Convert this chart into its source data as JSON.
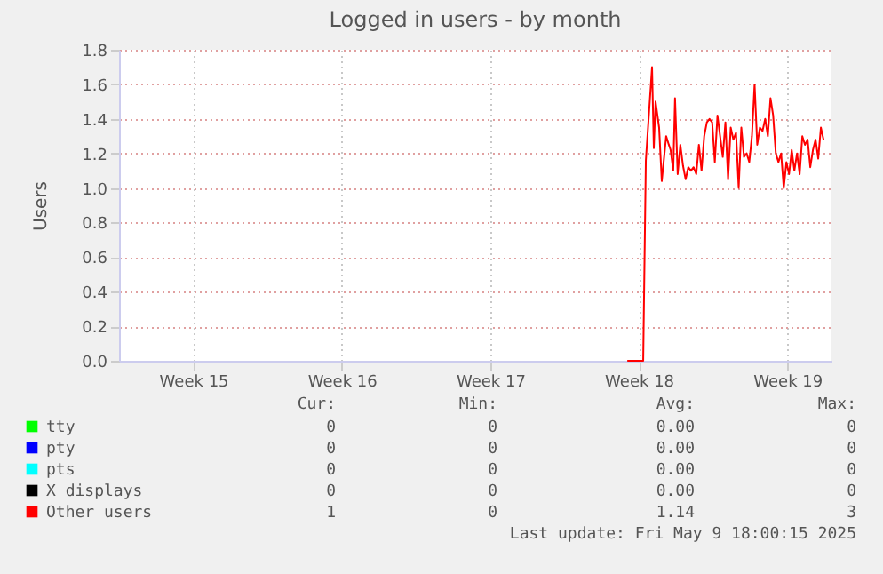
{
  "chart_data": {
    "type": "line",
    "title": "Logged in users - by month",
    "ylabel": "Users",
    "x": [
      "2025-04-30T11:00",
      "2025-05-01T05:00",
      "2025-05-01T08:00",
      "2025-05-01T15:00",
      "2025-05-01T17:00",
      "2025-05-01T19:00",
      "2025-05-01T23:00",
      "2025-05-02T02:00",
      "2025-05-02T07:00",
      "2025-05-02T10:00",
      "2025-05-02T12:00",
      "2025-05-02T15:00",
      "2025-05-02T17:00",
      "2025-05-02T20:00",
      "2025-05-02T23:00",
      "2025-05-03T02:00",
      "2025-05-03T05:00",
      "2025-05-03T08:00",
      "2025-05-03T11:00",
      "2025-05-03T14:00",
      "2025-05-03T17:00",
      "2025-05-03T20:00",
      "2025-05-03T23:00",
      "2025-05-04T02:00",
      "2025-05-04T05:00",
      "2025-05-04T08:00",
      "2025-05-04T11:00",
      "2025-05-04T14:00",
      "2025-05-04T17:00",
      "2025-05-04T20:00",
      "2025-05-04T23:00",
      "2025-05-05T02:00",
      "2025-05-05T05:00",
      "2025-05-05T08:00",
      "2025-05-05T11:00",
      "2025-05-05T14:00",
      "2025-05-05T17:00",
      "2025-05-05T20:00",
      "2025-05-05T23:00",
      "2025-05-06T02:00",
      "2025-05-06T05:00",
      "2025-05-06T08:00",
      "2025-05-06T11:00",
      "2025-05-06T14:00",
      "2025-05-06T17:00",
      "2025-05-06T20:00",
      "2025-05-06T23:00",
      "2025-05-07T02:00",
      "2025-05-07T05:00",
      "2025-05-07T08:00",
      "2025-05-07T11:00",
      "2025-05-07T14:00",
      "2025-05-07T17:00",
      "2025-05-07T20:00",
      "2025-05-07T23:00",
      "2025-05-08T02:00",
      "2025-05-08T05:00",
      "2025-05-08T08:00",
      "2025-05-08T11:00",
      "2025-05-08T14:00",
      "2025-05-08T17:00",
      "2025-05-08T20:00",
      "2025-05-08T23:00",
      "2025-05-09T02:00",
      "2025-05-09T05:00",
      "2025-05-09T08:00",
      "2025-05-09T11:00",
      "2025-05-09T14:00",
      "2025-05-09T17:00"
    ],
    "series": [
      {
        "name": "tty",
        "color": "#00ff00",
        "values": [
          null,
          null,
          null,
          null,
          null,
          null,
          null,
          null,
          null,
          null,
          null,
          null,
          null,
          null,
          null,
          null,
          null,
          null,
          null,
          null,
          null,
          null,
          null,
          null,
          null,
          null,
          null,
          null,
          null,
          null,
          null,
          null,
          null,
          null,
          null,
          null,
          null,
          null,
          null,
          null,
          null,
          null,
          null,
          null,
          null,
          null,
          null,
          null,
          null,
          null,
          null,
          null,
          null,
          null,
          null,
          null,
          null,
          null,
          null,
          null,
          null,
          null,
          null,
          null,
          null,
          null,
          null,
          null,
          null
        ]
      },
      {
        "name": "pty",
        "color": "#0000ff",
        "values": [
          null,
          null,
          null,
          null,
          null,
          null,
          null,
          null,
          null,
          null,
          null,
          null,
          null,
          null,
          null,
          null,
          null,
          null,
          null,
          null,
          null,
          null,
          null,
          null,
          null,
          null,
          null,
          null,
          null,
          null,
          null,
          null,
          null,
          null,
          null,
          null,
          null,
          null,
          null,
          null,
          null,
          null,
          null,
          null,
          null,
          null,
          null,
          null,
          null,
          null,
          null,
          null,
          null,
          null,
          null,
          null,
          null,
          null,
          null,
          null,
          null,
          null,
          null,
          null,
          null,
          null,
          null,
          null,
          null
        ]
      },
      {
        "name": "pts",
        "color": "#00ffff",
        "values": [
          null,
          null,
          null,
          null,
          null,
          null,
          null,
          null,
          null,
          null,
          null,
          null,
          null,
          null,
          null,
          null,
          null,
          null,
          null,
          null,
          null,
          null,
          null,
          null,
          null,
          null,
          null,
          null,
          null,
          null,
          null,
          null,
          null,
          null,
          null,
          null,
          null,
          null,
          null,
          null,
          null,
          null,
          null,
          null,
          null,
          null,
          null,
          null,
          null,
          null,
          null,
          null,
          null,
          null,
          null,
          null,
          null,
          null,
          null,
          null,
          null,
          null,
          null,
          null,
          null,
          null,
          null,
          null,
          null
        ]
      },
      {
        "name": "X displays",
        "color": "#000000",
        "values": [
          null,
          null,
          null,
          null,
          null,
          null,
          null,
          null,
          null,
          null,
          null,
          null,
          null,
          null,
          null,
          null,
          null,
          null,
          null,
          null,
          null,
          null,
          null,
          null,
          null,
          null,
          null,
          null,
          null,
          null,
          null,
          null,
          null,
          null,
          null,
          null,
          null,
          null,
          null,
          null,
          null,
          null,
          null,
          null,
          null,
          null,
          null,
          null,
          null,
          null,
          null,
          null,
          null,
          null,
          null,
          null,
          null,
          null,
          null,
          null,
          null,
          null,
          null,
          null,
          null,
          null,
          null,
          null,
          null
        ]
      },
      {
        "name": "Other users",
        "color": "#ff0000",
        "values": [
          0,
          0,
          1.16,
          1.7,
          1.23,
          1.5,
          1.35,
          1.04,
          1.3,
          1.25,
          1.22,
          1.1,
          1.52,
          1.08,
          1.25,
          1.13,
          1.05,
          1.12,
          1.1,
          1.12,
          1.08,
          1.25,
          1.1,
          1.3,
          1.38,
          1.4,
          1.38,
          1.15,
          1.42,
          1.3,
          1.18,
          1.38,
          1.05,
          1.35,
          1.28,
          1.32,
          1.0,
          1.35,
          1.18,
          1.2,
          1.15,
          1.3,
          1.6,
          1.25,
          1.35,
          1.33,
          1.4,
          1.3,
          1.52,
          1.42,
          1.2,
          1.15,
          1.2,
          1.0,
          1.15,
          1.08,
          1.22,
          1.1,
          1.2,
          1.08,
          1.3,
          1.25,
          1.28,
          1.12,
          1.22,
          1.28,
          1.17,
          1.35,
          1.28
        ]
      }
    ],
    "xlim": [
      "2025-04-06T12:00",
      "2025-05-10T02:00"
    ],
    "xticks": [
      {
        "value": "2025-04-10",
        "label": "Week 15"
      },
      {
        "value": "2025-04-17",
        "label": "Week 16"
      },
      {
        "value": "2025-04-24",
        "label": "Week 17"
      },
      {
        "value": "2025-05-01",
        "label": "Week 18"
      },
      {
        "value": "2025-05-08",
        "label": "Week 19"
      }
    ],
    "ylim": [
      0,
      1.8
    ],
    "yticks": [
      {
        "value": 0,
        "label": "0.0"
      },
      {
        "value": 0.2,
        "label": "0.2"
      },
      {
        "value": 0.4,
        "label": "0.4"
      },
      {
        "value": 0.6,
        "label": "0.6"
      },
      {
        "value": 0.8,
        "label": "0.8"
      },
      {
        "value": 1,
        "label": "1.0"
      },
      {
        "value": 1.2,
        "label": "1.2"
      },
      {
        "value": 1.4,
        "label": "1.4"
      },
      {
        "value": 1.6,
        "label": "1.6"
      },
      {
        "value": 1.8,
        "label": "1.8"
      }
    ],
    "grid": true,
    "legend": "bottom",
    "annotations": [
      "Cur:",
      "Min:",
      "Avg:",
      "Max:",
      "0",
      "0",
      "0.00",
      "0",
      "0",
      "0",
      "0.00",
      "0",
      "0",
      "0",
      "0.00",
      "0",
      "0",
      "0",
      "0.00",
      "0",
      "1",
      "0",
      "1.14",
      "3",
      "Last update: Fri May  9 18:00:15 2025"
    ]
  }
}
